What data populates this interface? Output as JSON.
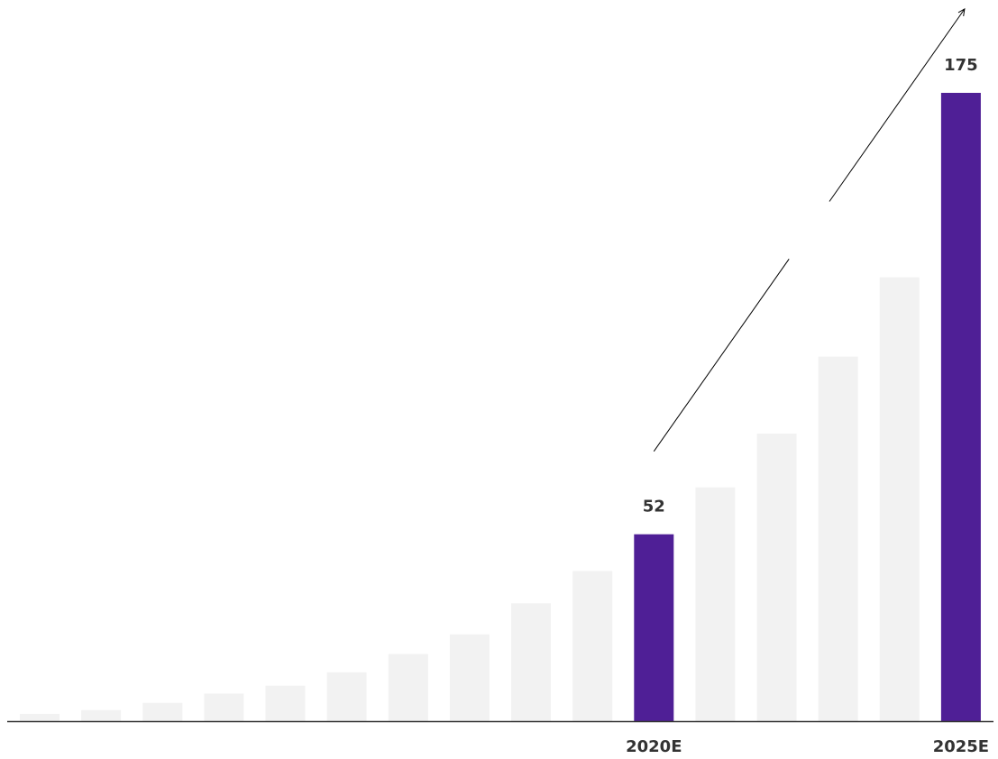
{
  "chart_data": {
    "type": "bar",
    "categories": [
      "",
      "",
      "",
      "",
      "",
      "",
      "",
      "",
      "",
      "",
      "2020E",
      "",
      "",
      "",
      "",
      "2025E"
    ],
    "values": [
      1.2,
      1.8,
      3.0,
      4.5,
      5.8,
      8.0,
      11.0,
      14.2,
      19.3,
      24.6,
      30.6,
      38.3,
      47.1,
      59.7,
      72.7,
      102.9
    ],
    "highlighted": [
      10,
      15
    ],
    "data_labels": {
      "10": "52",
      "15": "175"
    },
    "title": "",
    "xlabel": "",
    "ylabel": "",
    "ylim": [
      0,
      105
    ],
    "grid": false,
    "legend": "none",
    "trend_arrow": {
      "from_index": 10,
      "to_index": 15
    }
  },
  "colors": {
    "highlight": "#4f1f96",
    "muted": "#f2f2f2",
    "axis": "#333333",
    "text": "#333333",
    "arrow": "#000000"
  }
}
